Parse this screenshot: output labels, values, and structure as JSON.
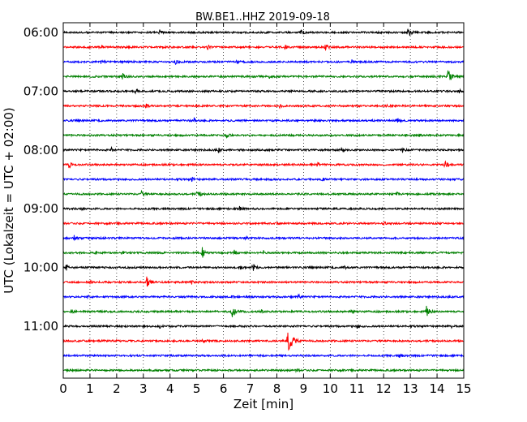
{
  "chart_data": {
    "type": "line",
    "title": "BW.BE1..HHZ 2019-09-18",
    "xlabel": "Zeit  [min]",
    "ylabel": "UTC (Lokalzeit = UTC + 02:00)",
    "xlim": [
      0,
      15
    ],
    "x_ticks": [
      0,
      1,
      2,
      3,
      4,
      5,
      6,
      7,
      8,
      9,
      10,
      11,
      12,
      13,
      14,
      15
    ],
    "x_tick_labels": [
      "0",
      "1",
      "2",
      "3",
      "4",
      "5",
      "6",
      "7",
      "8",
      "9",
      "10",
      "11",
      "12",
      "13",
      "14",
      "15"
    ],
    "y_tick_labels": [
      "06:00",
      "07:00",
      "08:00",
      "09:00",
      "10:00",
      "11:00"
    ],
    "y_tick_rows": [
      0,
      4,
      8,
      12,
      16,
      20
    ],
    "rows_per_hour": 4,
    "vertical_grid": "dotted",
    "colors": [
      "#000000",
      "#ff0000",
      "#0000ff",
      "#008000"
    ],
    "traces": [
      {
        "row": 0,
        "color": "#000000",
        "events": [
          [
            3.6,
            0.4
          ],
          [
            8.9,
            0.5
          ],
          [
            12.9,
            0.9
          ]
        ]
      },
      {
        "row": 1,
        "color": "#ff0000",
        "events": [
          [
            1.4,
            0.5
          ],
          [
            5.4,
            0.4
          ],
          [
            8.3,
            0.4
          ],
          [
            9.8,
            0.6
          ]
        ]
      },
      {
        "row": 2,
        "color": "#0000ff",
        "events": [
          [
            1.4,
            0.3
          ],
          [
            4.2,
            0.3
          ],
          [
            6.5,
            0.3
          ],
          [
            10.8,
            0.3
          ]
        ]
      },
      {
        "row": 3,
        "color": "#008000",
        "events": [
          [
            2.2,
            0.7
          ],
          [
            7.7,
            0.3
          ],
          [
            14.4,
            1.0
          ]
        ]
      },
      {
        "row": 4,
        "color": "#000000",
        "events": [
          [
            2.7,
            0.4
          ],
          [
            14.8,
            0.4
          ]
        ]
      },
      {
        "row": 5,
        "color": "#ff0000",
        "events": [
          [
            3.1,
            0.4
          ],
          [
            8.1,
            0.3
          ],
          [
            12.1,
            0.3
          ]
        ]
      },
      {
        "row": 6,
        "color": "#0000ff",
        "events": [
          [
            4.9,
            0.3
          ],
          [
            12.5,
            0.5
          ]
        ]
      },
      {
        "row": 7,
        "color": "#008000",
        "events": [
          [
            6.1,
            0.6
          ],
          [
            13.3,
            0.3
          ]
        ]
      },
      {
        "row": 8,
        "color": "#000000",
        "events": [
          [
            1.8,
            0.3
          ],
          [
            5.8,
            0.4
          ],
          [
            10.4,
            0.3
          ],
          [
            12.7,
            0.4
          ]
        ]
      },
      {
        "row": 9,
        "color": "#ff0000",
        "events": [
          [
            0.2,
            0.6
          ],
          [
            9.5,
            0.4
          ],
          [
            14.3,
            0.6
          ]
        ]
      },
      {
        "row": 10,
        "color": "#0000ff",
        "events": [
          [
            4.8,
            0.4
          ],
          [
            9.7,
            0.3
          ]
        ]
      },
      {
        "row": 11,
        "color": "#008000",
        "events": [
          [
            2.9,
            0.6
          ],
          [
            5.0,
            0.7
          ],
          [
            12.5,
            0.4
          ],
          [
            13.9,
            0.3
          ]
        ]
      },
      {
        "row": 12,
        "color": "#000000",
        "events": [
          [
            0.7,
            0.3
          ],
          [
            6.6,
            0.3
          ]
        ]
      },
      {
        "row": 13,
        "color": "#ff0000",
        "events": [
          [
            12.0,
            0.2
          ]
        ]
      },
      {
        "row": 14,
        "color": "#0000ff",
        "events": [
          [
            0.4,
            0.5
          ],
          [
            6.8,
            0.3
          ]
        ]
      },
      {
        "row": 15,
        "color": "#008000",
        "events": [
          [
            1.2,
            0.3
          ],
          [
            2.2,
            0.4
          ],
          [
            5.2,
            0.8
          ],
          [
            6.4,
            0.5
          ],
          [
            7.5,
            0.3
          ]
        ]
      },
      {
        "row": 16,
        "color": "#000000",
        "events": [
          [
            0.1,
            0.5
          ],
          [
            6.6,
            0.4
          ],
          [
            7.1,
            0.6
          ],
          [
            10.5,
            0.3
          ]
        ]
      },
      {
        "row": 17,
        "color": "#ff0000",
        "events": [
          [
            1.0,
            0.3
          ],
          [
            3.1,
            1.0
          ],
          [
            4.8,
            0.3
          ]
        ]
      },
      {
        "row": 18,
        "color": "#0000ff",
        "events": [
          [
            0.9,
            0.5
          ],
          [
            6.3,
            0.3
          ],
          [
            8.8,
            0.3
          ]
        ]
      },
      {
        "row": 19,
        "color": "#008000",
        "events": [
          [
            0.3,
            0.3
          ],
          [
            6.3,
            1.0
          ],
          [
            7.4,
            0.4
          ],
          [
            10.8,
            0.4
          ],
          [
            13.6,
            0.8
          ]
        ]
      },
      {
        "row": 20,
        "color": "#000000",
        "events": [
          [
            3.6,
            0.3
          ],
          [
            11.0,
            0.4
          ],
          [
            14.5,
            0.3
          ]
        ]
      },
      {
        "row": 21,
        "color": "#ff0000",
        "events": [
          [
            1.9,
            0.4
          ],
          [
            5.2,
            0.5
          ],
          [
            8.4,
            1.8
          ]
        ]
      },
      {
        "row": 22,
        "color": "#0000ff",
        "events": [
          [
            12.6,
            0.4
          ]
        ]
      },
      {
        "row": 23,
        "color": "#008000",
        "events": [
          [
            8.7,
            0.3
          ]
        ]
      }
    ]
  }
}
